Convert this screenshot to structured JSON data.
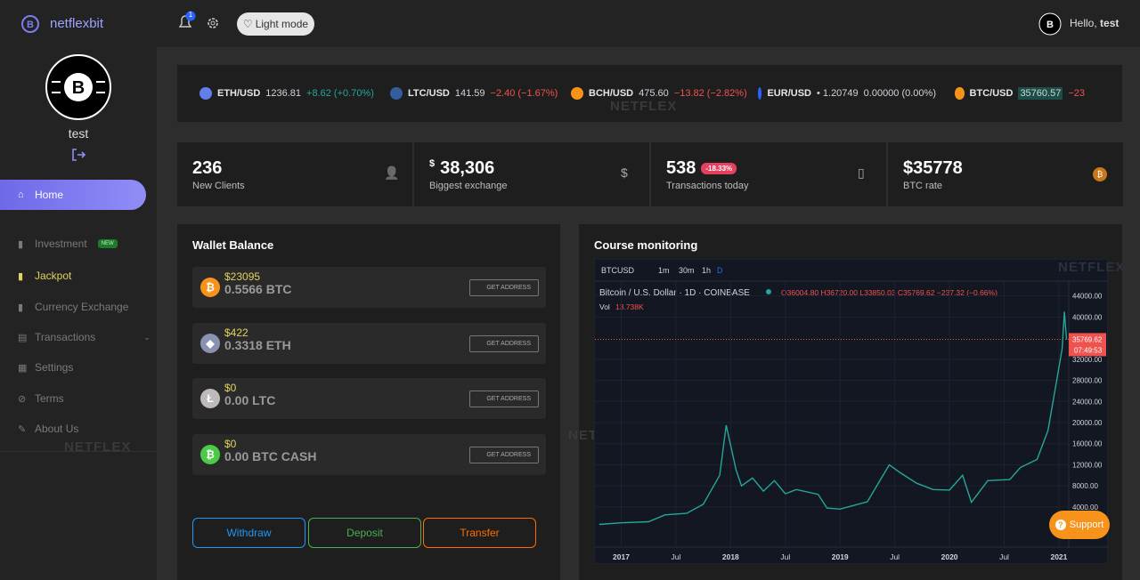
{
  "sidebar": {
    "brand": "netflexbit",
    "username": "test",
    "menu": [
      {
        "label": "Home"
      },
      {
        "label": "Investment",
        "badge": "NEW"
      },
      {
        "label": "Jackpot"
      },
      {
        "label": "Currency Exchange"
      },
      {
        "label": "Transactions"
      },
      {
        "label": "Settings"
      },
      {
        "label": "Terms"
      },
      {
        "label": "About Us"
      }
    ]
  },
  "topbar": {
    "notifications": "1",
    "light_mode": "Light mode",
    "greeting": "Hello,",
    "user": "test"
  },
  "watermark": "NETFLEX",
  "ticker": [
    {
      "symbol": "ETH/USD",
      "price": "1236.81",
      "change": "+8.62 (+0.70%)",
      "color": "#26a69a",
      "icon": "#627eea"
    },
    {
      "symbol": "LTC/USD",
      "price": "141.59",
      "change": "−2.40 (−1.67%)",
      "color": "#ef5350",
      "icon": "#345d9d"
    },
    {
      "symbol": "BCH/USD",
      "price": "475.60",
      "change": "−13.82 (−2.82%)",
      "color": "#ef5350",
      "icon": "#f7931a"
    },
    {
      "symbol": "EUR/USD",
      "price": "• 1.20749",
      "change": "0.00000 (0.00%)",
      "color": "#d1d4dc",
      "icon": "#2962ff"
    },
    {
      "symbol": "BTC/USD",
      "price": "35760.57",
      "change": "−23",
      "color": "#ef5350",
      "icon": "#f7931a"
    }
  ],
  "stats": [
    {
      "value": "236",
      "label": "New Clients"
    },
    {
      "prefix": "$",
      "value": "38,306",
      "label": "Biggest exchange"
    },
    {
      "value": "538",
      "badge": "-18.33%",
      "label": "Transactions today"
    },
    {
      "value": "$35778",
      "label": "BTC rate"
    }
  ],
  "wallet": {
    "title": "Wallet Balance",
    "items": [
      {
        "usd": "$23095",
        "amount": "0.5566 BTC",
        "button": "GET ADDRESS",
        "icon": "#f7931a",
        "glyph": "₿"
      },
      {
        "usd": "$422",
        "amount": "0.3318 ETH",
        "button": "GET ADDRESS",
        "icon": "#8a92b2",
        "glyph": "◆"
      },
      {
        "usd": "$0",
        "amount": "0.00 LTC",
        "button": "GET ADDRESS",
        "icon": "#bfbbbb",
        "glyph": "Ł"
      },
      {
        "usd": "$0",
        "amount": "0.00 BTC CASH",
        "button": "GET ADDRESS",
        "icon": "#4cc947",
        "glyph": "₿"
      }
    ],
    "actions": [
      {
        "label": "Withdraw",
        "color": "#2196f3"
      },
      {
        "label": "Deposit",
        "color": "#4caf50"
      },
      {
        "label": "Transfer",
        "color": "#ff6d00"
      }
    ]
  },
  "course_monitoring": {
    "title": "Course monitoring",
    "toolbar": {
      "symbol": "BTCUSD",
      "intervals": [
        "1m",
        "30m",
        "1h",
        "D"
      ]
    },
    "legend": {
      "name": "Bitcoin / U.S. Dollar · 1D · COINBASE",
      "ohlc": "O36004.80 H36720.00 L33850.03 C35769.62 −237.32 (−0.66%)",
      "vol_label": "Vol",
      "vol": "13.738K"
    },
    "chart": {
      "type": "line",
      "color": "#26a69a",
      "x": [
        2016.8,
        2017.0,
        2017.25,
        2017.4,
        2017.6,
        2017.75,
        2017.9,
        2017.96,
        2018.05,
        2018.1,
        2018.2,
        2018.3,
        2018.4,
        2018.5,
        2018.6,
        2018.8,
        2018.88,
        2019.0,
        2019.25,
        2019.45,
        2019.55,
        2019.7,
        2019.85,
        2020.0,
        2020.12,
        2020.2,
        2020.35,
        2020.55,
        2020.65,
        2020.8,
        2020.9,
        2020.98,
        2021.03,
        2021.05,
        2021.07
      ],
      "values": [
        700,
        1000,
        1200,
        2500,
        2800,
        4500,
        10000,
        19500,
        11000,
        8000,
        9500,
        7000,
        9000,
        6500,
        7300,
        6400,
        3800,
        3600,
        5000,
        12000,
        10500,
        8500,
        7300,
        7200,
        10000,
        4900,
        9000,
        9200,
        11500,
        13000,
        18500,
        28000,
        34000,
        41000,
        35769.62
      ],
      "xlim": [
        2016.76,
        2021.09
      ],
      "ylim": [
        -3600,
        46800
      ],
      "xticks": [
        {
          "value": 2017,
          "label": "2017"
        },
        {
          "value": 2017.5,
          "label": "Jul"
        },
        {
          "value": 2018,
          "label": "2018"
        },
        {
          "value": 2018.5,
          "label": "Jul"
        },
        {
          "value": 2019,
          "label": "2019"
        },
        {
          "value": 2019.5,
          "label": "Jul"
        },
        {
          "value": 2020,
          "label": "2020"
        },
        {
          "value": 2020.5,
          "label": "Jul"
        },
        {
          "value": 2021,
          "label": "2021"
        }
      ],
      "yticks": [
        {
          "value": 44000,
          "label": "44000.00"
        },
        {
          "value": 40000,
          "label": "40000.00"
        },
        {
          "value": 32000,
          "label": "32000.00"
        },
        {
          "value": 28000,
          "label": "28000.00"
        },
        {
          "value": 24000,
          "label": "24000.00"
        },
        {
          "value": 20000,
          "label": "20000.00"
        },
        {
          "value": 16000,
          "label": "16000.00"
        },
        {
          "value": 12000,
          "label": "12000.00"
        },
        {
          "value": 8000,
          "label": "8000.00"
        },
        {
          "value": 4000,
          "label": "4000.00"
        }
      ],
      "last_price": 35769.62,
      "countdown": "07:49:53"
    }
  },
  "support": "Support"
}
